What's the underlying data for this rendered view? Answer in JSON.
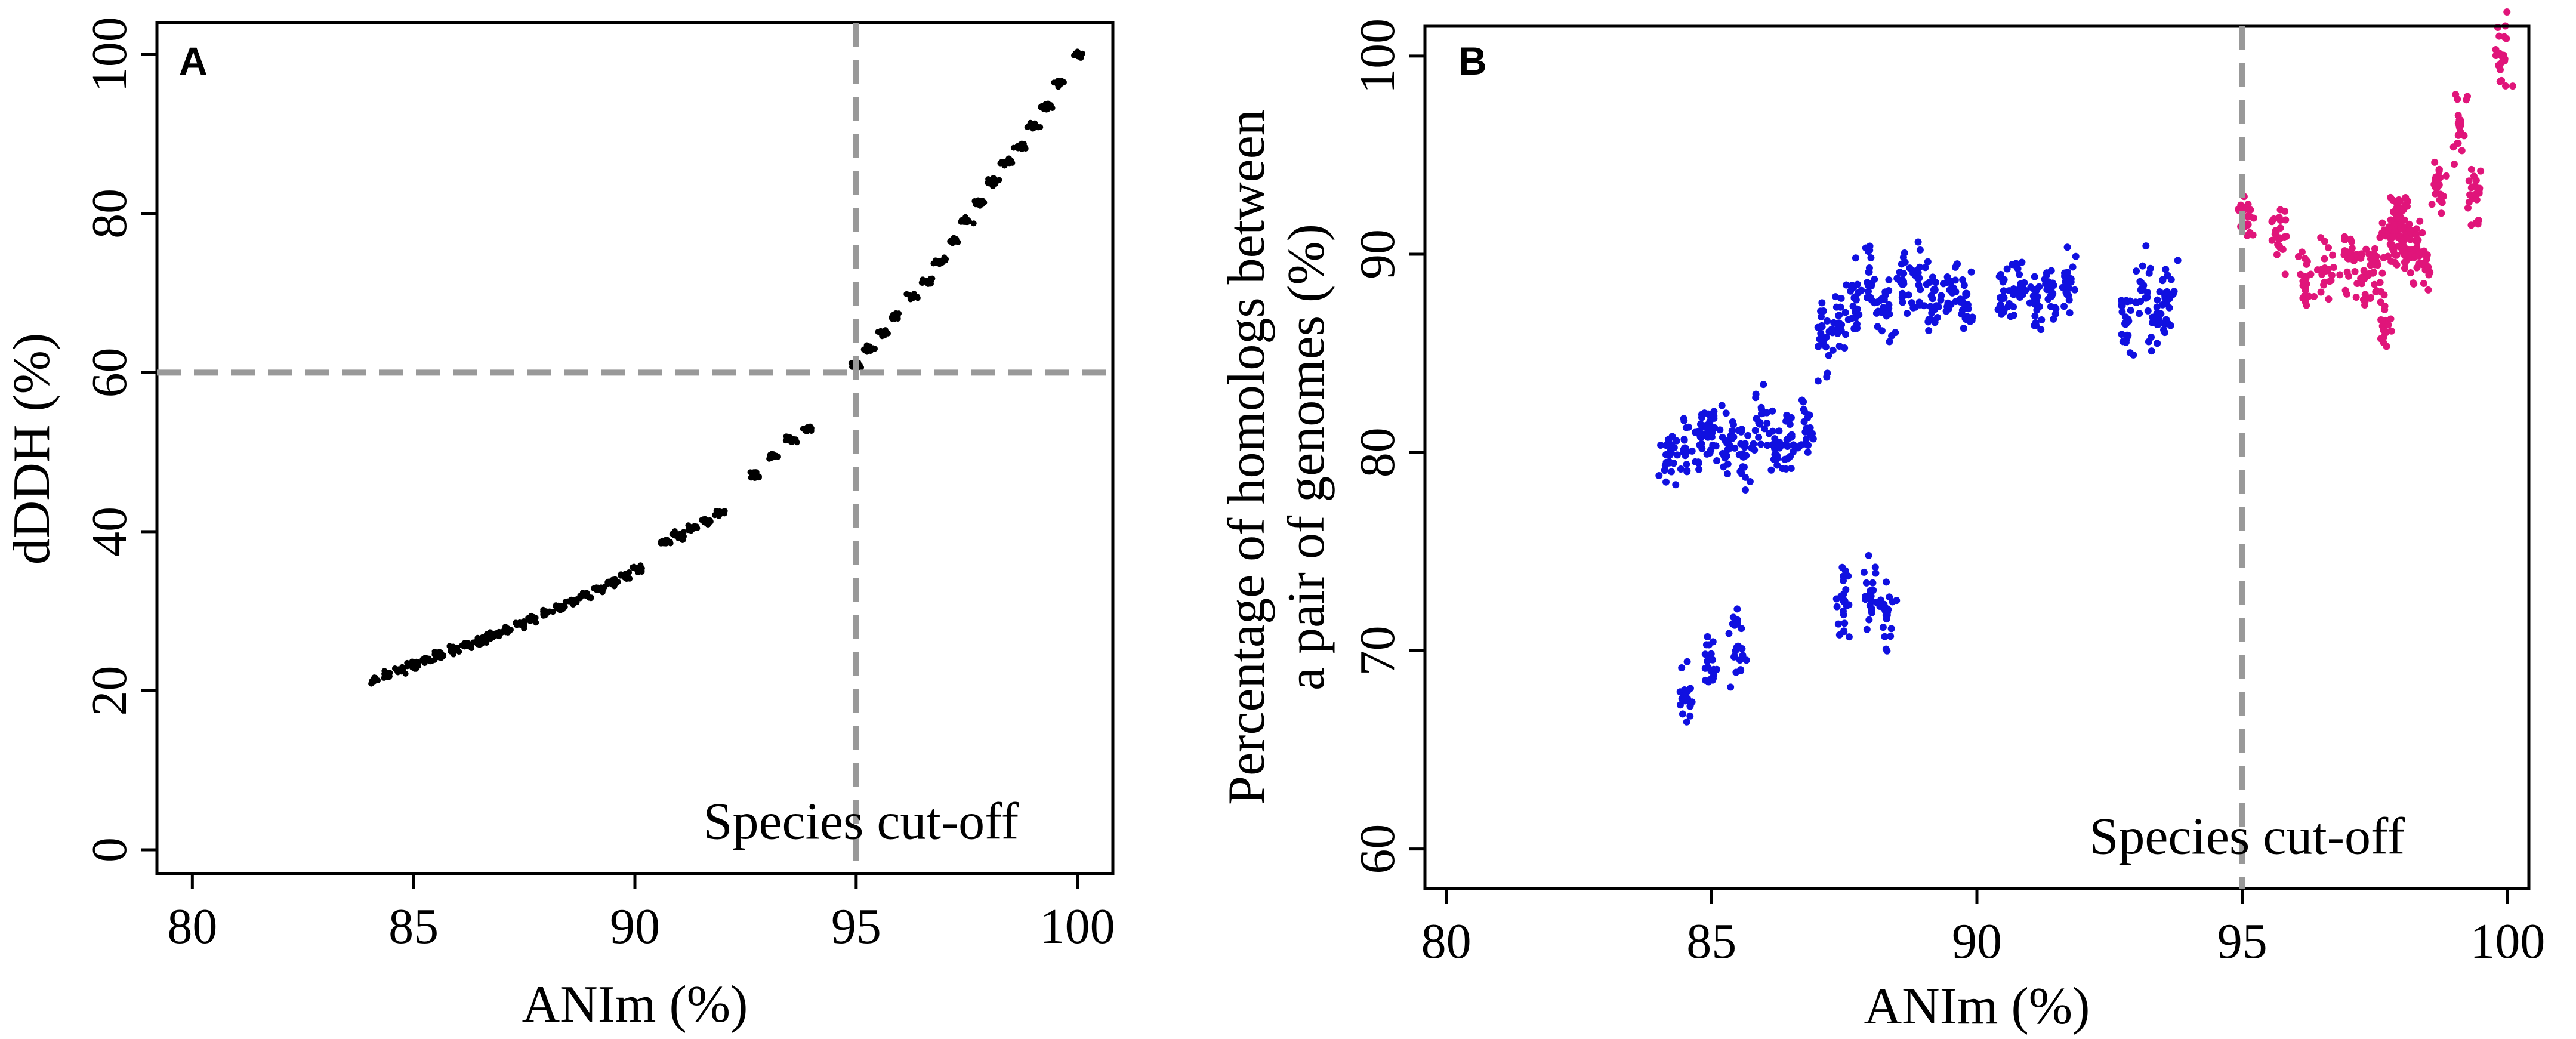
{
  "chart_data": [
    {
      "panel": "A",
      "type": "scatter",
      "title": "",
      "xlabel": "ANIm (%)",
      "ylabel": "dDDH (%)",
      "xlim": [
        79.2,
        100.8
      ],
      "ylim": [
        -3,
        104
      ],
      "xticks": [
        80,
        85,
        90,
        95,
        100
      ],
      "yticks": [
        0,
        20,
        40,
        60,
        80,
        100
      ],
      "grid": false,
      "legend": "none",
      "point_color": "#000000",
      "reference_lines": [
        {
          "orientation": "vertical",
          "value": 95,
          "style": "dashed",
          "color": "#999999"
        },
        {
          "orientation": "horizontal",
          "value": 60,
          "style": "dashed",
          "color": "#999999"
        }
      ],
      "annotation": {
        "text": "Species cut-off",
        "x": 95,
        "y": 2
      },
      "series": [
        {
          "x": [
            84.1,
            84.4,
            84.7,
            85.0,
            85.3,
            85.6,
            85.9,
            86.2,
            86.5,
            86.8,
            87.1,
            87.4,
            87.7,
            88.0,
            88.3,
            88.6,
            88.9,
            89.2,
            89.5,
            89.8,
            90.1,
            90.7,
            91.0,
            91.3,
            91.6,
            91.9,
            92.7,
            93.1,
            93.5,
            93.9,
            95.0,
            95.3,
            95.6,
            95.9,
            96.3,
            96.6,
            96.9,
            97.2,
            97.5,
            97.8,
            98.1,
            98.4,
            98.7,
            99.0,
            99.3,
            99.6,
            100.0
          ],
          "y": [
            21.3,
            22.0,
            22.6,
            23.2,
            23.9,
            24.5,
            25.1,
            25.8,
            26.4,
            27.0,
            27.7,
            28.4,
            29.1,
            29.8,
            30.5,
            31.3,
            32.0,
            32.8,
            33.6,
            34.4,
            35.3,
            38.6,
            39.5,
            40.4,
            41.3,
            42.3,
            47.0,
            49.5,
            51.5,
            53.0,
            61.0,
            63.0,
            65.0,
            67.0,
            69.5,
            71.5,
            74.0,
            76.5,
            79.0,
            81.5,
            84.0,
            86.5,
            88.5,
            91.0,
            93.5,
            96.5,
            100.0
          ]
        }
      ]
    },
    {
      "panel": "B",
      "type": "scatter",
      "title": "",
      "xlabel": "ANIm (%)",
      "ylabel_line1": "Percentage of homologs between",
      "ylabel_line2": "a pair of genomes (%)",
      "xlim": [
        79.6,
        100.4
      ],
      "ylim": [
        58,
        101.5
      ],
      "xticks": [
        80,
        85,
        90,
        95,
        100
      ],
      "yticks": [
        60,
        70,
        80,
        90,
        100
      ],
      "grid": false,
      "legend": "none",
      "reference_lines": [
        {
          "orientation": "vertical",
          "value": 95,
          "style": "dashed",
          "color": "#999999"
        }
      ],
      "annotation": {
        "text": "Species cut-off",
        "x": 95,
        "y": 60
      },
      "series": [
        {
          "color": "#1010e0",
          "x": [
            84.2,
            84.5,
            84.8,
            85.0,
            85.3,
            85.6,
            85.9,
            86.2,
            86.5,
            86.8,
            87.1,
            87.4,
            87.7,
            88.0,
            88.3,
            88.6,
            88.9,
            89.2,
            89.5,
            89.8,
            90.5,
            90.8,
            91.1,
            91.4,
            91.7,
            92.8,
            93.1,
            93.4,
            93.6,
            84.5,
            85.0,
            85.5,
            87.5,
            88.0,
            88.3
          ],
          "y": [
            79.5,
            80.2,
            80.8,
            81.0,
            80.5,
            79.8,
            81.5,
            80.2,
            80.8,
            81.2,
            85.5,
            86.5,
            87.8,
            88.5,
            87.2,
            88.5,
            88.8,
            88.2,
            88.6,
            88.0,
            87.8,
            88.2,
            87.5,
            87.9,
            88.3,
            86.5,
            88.2,
            87.0,
            88.0,
            67.5,
            69.0,
            70.2,
            72.5,
            73.0,
            71.8
          ]
        },
        {
          "color": "#e0157a",
          "x": [
            95.1,
            95.7,
            96.2,
            96.6,
            97.0,
            97.3,
            97.5,
            97.7,
            97.8,
            97.9,
            98.0,
            98.1,
            98.2,
            98.4,
            98.7,
            99.1,
            99.4,
            99.9
          ],
          "y": [
            91.5,
            90.8,
            88.5,
            89.2,
            89.8,
            88.8,
            89.5,
            86.5,
            90.5,
            91.5,
            92.2,
            91.0,
            90.2,
            89.5,
            93.5,
            96.5,
            93.0,
            100.0
          ]
        }
      ]
    }
  ]
}
